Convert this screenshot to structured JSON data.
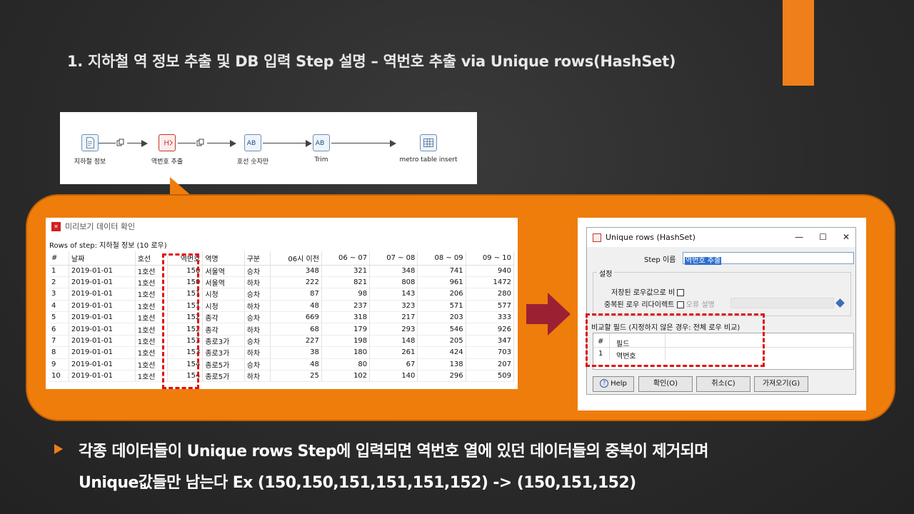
{
  "slide": {
    "title": "1. 지하철 역 정보 추출 및 DB 입력 Step 설명 – 역번호 추출 via Unique rows(HashSet)",
    "accent_color": "#ee7f1a",
    "bullet_line1": "각종 데이터들이 Unique rows Step에 입력되면 역번호 열에 있던 데이터들의 중복이 제거되며",
    "bullet_line2": "Unique값들만 남는다 Ex (150,150,151,151,151,152) -> (150,151,152)"
  },
  "flow": {
    "nodes": [
      {
        "label": "지하철 정보",
        "icon": "text-file-input-icon"
      },
      {
        "label": "역번호 추출",
        "icon": "unique-rows-hashset-icon"
      },
      {
        "label": "호선 숫자만",
        "icon": "replace-string-icon"
      },
      {
        "label": "Trim",
        "icon": "string-operations-icon"
      },
      {
        "label": "metro table insert",
        "icon": "table-output-icon"
      }
    ]
  },
  "preview": {
    "title": "미리보기 데이터 확인",
    "subtitle": "Rows of step: 지하철 정보 (10 로우)",
    "columns": [
      "#",
      "날짜",
      "호선",
      "역번호",
      "역명",
      "구분",
      "06시 이전",
      "06 ~ 07",
      "07 ~ 08",
      "08 ~ 09",
      "09 ~ 10"
    ],
    "rows": [
      [
        "1",
        "2019-01-01",
        "1호선",
        "150",
        "서울역",
        "승차",
        "348",
        "321",
        "348",
        "741",
        "940"
      ],
      [
        "2",
        "2019-01-01",
        "1호선",
        "150",
        "서울역",
        "하차",
        "222",
        "821",
        "808",
        "961",
        "1472"
      ],
      [
        "3",
        "2019-01-01",
        "1호선",
        "151",
        "시청",
        "승차",
        "87",
        "98",
        "143",
        "206",
        "280"
      ],
      [
        "4",
        "2019-01-01",
        "1호선",
        "151",
        "시청",
        "하차",
        "48",
        "237",
        "323",
        "571",
        "577"
      ],
      [
        "5",
        "2019-01-01",
        "1호선",
        "152",
        "종각",
        "승차",
        "669",
        "318",
        "217",
        "203",
        "333"
      ],
      [
        "6",
        "2019-01-01",
        "1호선",
        "152",
        "종각",
        "하차",
        "68",
        "179",
        "293",
        "546",
        "926"
      ],
      [
        "7",
        "2019-01-01",
        "1호선",
        "153",
        "종로3가",
        "승차",
        "227",
        "198",
        "148",
        "205",
        "347"
      ],
      [
        "8",
        "2019-01-01",
        "1호선",
        "153",
        "종로3가",
        "하차",
        "38",
        "180",
        "261",
        "424",
        "703"
      ],
      [
        "9",
        "2019-01-01",
        "1호선",
        "154",
        "종로5가",
        "승차",
        "48",
        "80",
        "67",
        "138",
        "207"
      ],
      [
        "10",
        "2019-01-01",
        "1호선",
        "154",
        "종로5가",
        "하차",
        "25",
        "102",
        "140",
        "296",
        "509"
      ]
    ]
  },
  "dialog": {
    "title": "Unique rows (HashSet)",
    "minimize": "—",
    "maximize": "☐",
    "close": "✕",
    "step_name_label": "Step 이름",
    "step_name_value": "역번호 추출",
    "settings_label": "설정",
    "store_distinct_label": "저장된 로우값으로 비",
    "redirect_label": "중복된 로우 리다이렉트",
    "error_desc_label": "오류 설명",
    "compare_fields_label": "비교할 필드 (지정하지 않은 경우: 전체 로우 비교)",
    "compare_header_num": "#",
    "compare_header_field": "필드",
    "compare_rows": [
      {
        "num": "1",
        "field": "역번호"
      }
    ],
    "help_label": "Help",
    "ok_label": "확인(O)",
    "cancel_label": "취소(C)",
    "get_label": "가져오기(G)"
  }
}
